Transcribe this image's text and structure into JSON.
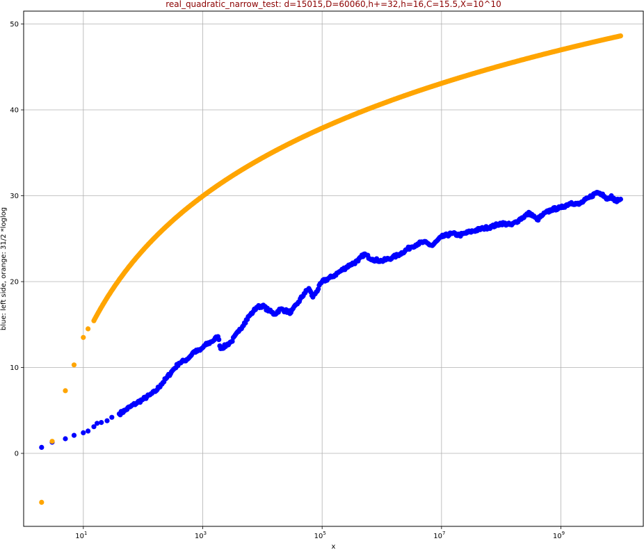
{
  "chart_data": {
    "type": "scatter",
    "title": "real_quadratic_narrow_test: d=15015,D=60060,h+=32,h=16,C=15.5,X=10^10",
    "title_color": "#8b0000",
    "xlabel": "x",
    "ylabel": "blue: left side, orange: 31/2 *loglog",
    "xscale": "log",
    "xlim": [
      1.0,
      24000000000.0
    ],
    "ylim": [
      -8.5,
      51.5
    ],
    "xticks": [
      {
        "value": 10,
        "base": "10",
        "exp": "1"
      },
      {
        "value": 1000,
        "base": "10",
        "exp": "3"
      },
      {
        "value": 100000,
        "base": "10",
        "exp": "5"
      },
      {
        "value": 10000000,
        "base": "10",
        "exp": "7"
      },
      {
        "value": 1000000000,
        "base": "10",
        "exp": "9"
      }
    ],
    "yticks": [
      0,
      10,
      20,
      30,
      40,
      50
    ],
    "ytick_labels": [
      "0",
      "10",
      "20",
      "30",
      "40",
      "50"
    ],
    "grid": true,
    "series": [
      {
        "color": "#0000ff",
        "points": [
          [
            2,
            0.7
          ],
          [
            3,
            1.3
          ],
          [
            5,
            1.7
          ],
          [
            7,
            2.1
          ],
          [
            10,
            2.4
          ],
          [
            12,
            2.6
          ],
          [
            15,
            3.1
          ],
          [
            17,
            3.5
          ],
          [
            20,
            3.6
          ],
          [
            25,
            3.8
          ],
          [
            30,
            4.2
          ],
          [
            40,
            4.6
          ],
          [
            50,
            5.0
          ],
          [
            60,
            5.4
          ],
          [
            80,
            5.9
          ],
          [
            100,
            6.3
          ],
          [
            130,
            6.8
          ],
          [
            160,
            7.2
          ],
          [
            200,
            8.0
          ],
          [
            250,
            8.8
          ],
          [
            300,
            9.5
          ],
          [
            400,
            10.5
          ],
          [
            500,
            10.8
          ],
          [
            600,
            11.2
          ],
          [
            700,
            11.8
          ],
          [
            900,
            12.0
          ],
          [
            1100,
            12.6
          ],
          [
            1400,
            13.0
          ],
          [
            1800,
            13.6
          ],
          [
            2000,
            12.2
          ],
          [
            2500,
            12.6
          ],
          [
            3000,
            13.0
          ],
          [
            4000,
            14.2
          ],
          [
            5000,
            15.2
          ],
          [
            6000,
            16.0
          ],
          [
            7000,
            16.5
          ],
          [
            8000,
            17.0
          ],
          [
            10000,
            17.2
          ],
          [
            13000,
            16.6
          ],
          [
            16000,
            16.2
          ],
          [
            20000,
            16.8
          ],
          [
            30000,
            16.4
          ],
          [
            40000,
            17.6
          ],
          [
            50000,
            18.6
          ],
          [
            60000,
            19.2
          ],
          [
            70000,
            18.2
          ],
          [
            80000,
            18.8
          ],
          [
            100000,
            20.0
          ],
          [
            150000,
            20.6
          ],
          [
            200000,
            21.2
          ],
          [
            300000,
            22.0
          ],
          [
            400000,
            22.4
          ],
          [
            500000,
            23.2
          ],
          [
            700000,
            22.6
          ],
          [
            1000000,
            22.4
          ],
          [
            1500000,
            22.8
          ],
          [
            2000000,
            23.2
          ],
          [
            3000000,
            24.0
          ],
          [
            4000000,
            24.4
          ],
          [
            5000000,
            24.6
          ],
          [
            7000000,
            24.2
          ],
          [
            10000000,
            25.2
          ],
          [
            15000000,
            25.6
          ],
          [
            20000000,
            25.4
          ],
          [
            30000000,
            25.8
          ],
          [
            50000000,
            26.2
          ],
          [
            70000000,
            26.4
          ],
          [
            100000000,
            26.8
          ],
          [
            150000000,
            26.6
          ],
          [
            200000000,
            27.2
          ],
          [
            300000000,
            28.0
          ],
          [
            400000000,
            27.2
          ],
          [
            500000000,
            27.8
          ],
          [
            700000000,
            28.4
          ],
          [
            1000000000,
            28.6
          ],
          [
            1500000000,
            29.2
          ],
          [
            2000000000,
            29.0
          ],
          [
            3000000000,
            29.8
          ],
          [
            4000000000,
            30.4
          ],
          [
            5000000000,
            30.2
          ],
          [
            6000000000,
            29.6
          ],
          [
            7000000000,
            30.0
          ],
          [
            8000000000,
            29.4
          ],
          [
            10000000000,
            29.6
          ]
        ]
      },
      {
        "color": "#ffa500",
        "points": [
          [
            2,
            -5.7
          ],
          [
            3,
            1.4
          ],
          [
            5,
            7.3
          ],
          [
            7,
            10.3
          ],
          [
            10,
            13.5
          ],
          [
            12,
            14.5
          ]
        ],
        "formula": "15.5*ln(ln(x))",
        "formula_range": [
          15,
          10000000000.0
        ]
      }
    ]
  }
}
